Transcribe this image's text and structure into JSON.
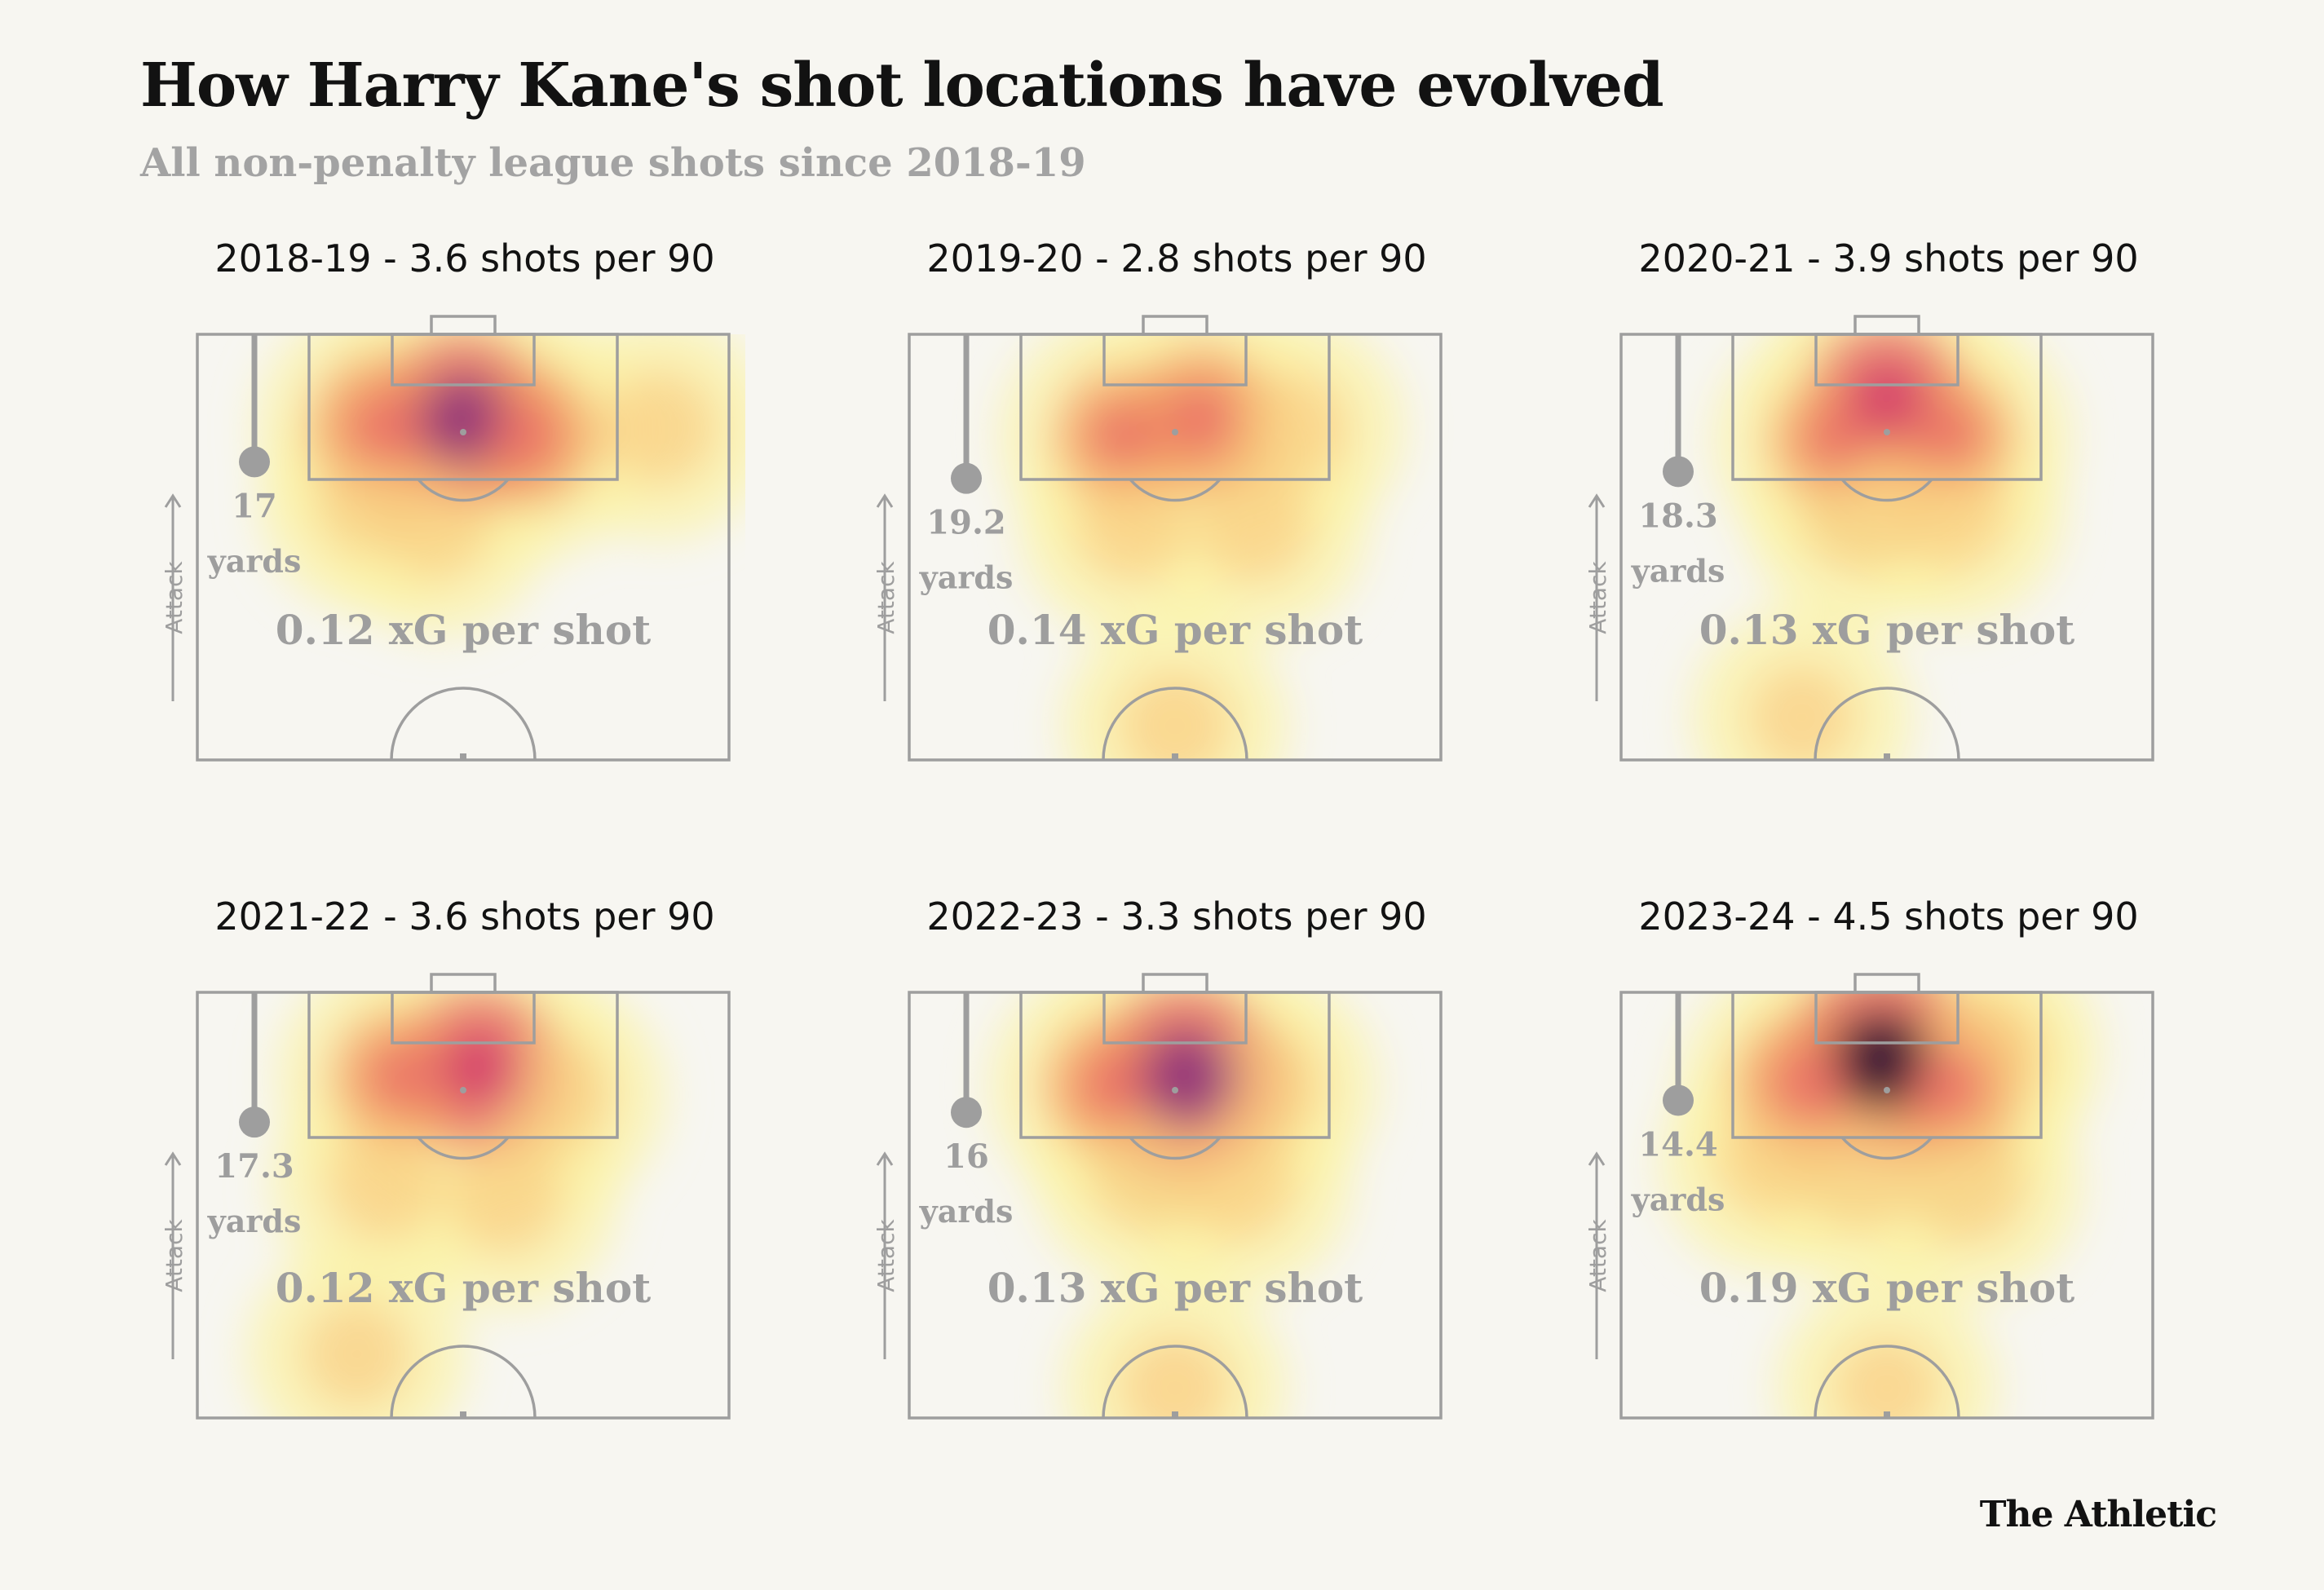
{
  "title": "How Harry Kane's shot locations have evolved",
  "subtitle": "All non-penalty league shots since 2018-19",
  "brand": "The Athletic",
  "attack_label": "Attack",
  "distance_unit": "yards",
  "xg_suffix": " xG per shot",
  "colors": {
    "background": "#f7f6f1",
    "pitch_lines": "#9e9e9e",
    "heat_low": "#fbf3a8",
    "heat_mid": "#f39a5e",
    "heat_high": "#d2386c",
    "heat_peak": "#1c0a2e"
  },
  "chart_data": [
    {
      "type": "heatmap",
      "season": "2018-19",
      "shots_per_90": 3.6,
      "title": "2018-19 - 3.6 shots per 90",
      "avg_shot_distance_yards": "17",
      "xg_per_shot": "0.12",
      "hotspots": [
        {
          "x": 0.5,
          "y": 0.2,
          "intensity": 0.85
        },
        {
          "x": 0.35,
          "y": 0.22,
          "intensity": 0.6
        },
        {
          "x": 0.62,
          "y": 0.24,
          "intensity": 0.55
        },
        {
          "x": 0.87,
          "y": 0.22,
          "intensity": 0.3
        },
        {
          "x": 0.45,
          "y": 0.45,
          "intensity": 0.25
        },
        {
          "x": 0.32,
          "y": 0.4,
          "intensity": 0.2
        }
      ]
    },
    {
      "type": "heatmap",
      "season": "2019-20",
      "shots_per_90": 2.8,
      "title": "2019-20 - 2.8 shots per 90",
      "avg_shot_distance_yards": "19.2",
      "xg_per_shot": "0.14",
      "hotspots": [
        {
          "x": 0.4,
          "y": 0.24,
          "intensity": 0.5
        },
        {
          "x": 0.55,
          "y": 0.2,
          "intensity": 0.6
        },
        {
          "x": 0.72,
          "y": 0.22,
          "intensity": 0.3
        },
        {
          "x": 0.42,
          "y": 0.45,
          "intensity": 0.3
        },
        {
          "x": 0.65,
          "y": 0.45,
          "intensity": 0.3
        },
        {
          "x": 0.5,
          "y": 0.92,
          "intensity": 0.3
        }
      ]
    },
    {
      "type": "heatmap",
      "season": "2020-21",
      "shots_per_90": 3.9,
      "title": "2020-21 - 3.9 shots per 90",
      "avg_shot_distance_yards": "18.3",
      "xg_per_shot": "0.13",
      "hotspots": [
        {
          "x": 0.5,
          "y": 0.15,
          "intensity": 0.7
        },
        {
          "x": 0.4,
          "y": 0.25,
          "intensity": 0.45
        },
        {
          "x": 0.62,
          "y": 0.24,
          "intensity": 0.45
        },
        {
          "x": 0.45,
          "y": 0.42,
          "intensity": 0.35
        },
        {
          "x": 0.62,
          "y": 0.42,
          "intensity": 0.3
        },
        {
          "x": 0.34,
          "y": 0.9,
          "intensity": 0.25
        }
      ]
    },
    {
      "type": "heatmap",
      "season": "2021-22",
      "shots_per_90": 3.6,
      "title": "2021-22 - 3.6 shots per 90",
      "avg_shot_distance_yards": "17.3",
      "xg_per_shot": "0.12",
      "hotspots": [
        {
          "x": 0.53,
          "y": 0.18,
          "intensity": 0.75
        },
        {
          "x": 0.38,
          "y": 0.2,
          "intensity": 0.5
        },
        {
          "x": 0.66,
          "y": 0.24,
          "intensity": 0.4
        },
        {
          "x": 0.35,
          "y": 0.45,
          "intensity": 0.3
        },
        {
          "x": 0.58,
          "y": 0.48,
          "intensity": 0.3
        },
        {
          "x": 0.3,
          "y": 0.85,
          "intensity": 0.25
        }
      ]
    },
    {
      "type": "heatmap",
      "season": "2022-23",
      "shots_per_90": 3.3,
      "title": "2022-23 - 3.3 shots per 90",
      "avg_shot_distance_yards": "16",
      "xg_per_shot": "0.13",
      "hotspots": [
        {
          "x": 0.52,
          "y": 0.2,
          "intensity": 0.95
        },
        {
          "x": 0.38,
          "y": 0.22,
          "intensity": 0.5
        },
        {
          "x": 0.66,
          "y": 0.22,
          "intensity": 0.4
        },
        {
          "x": 0.45,
          "y": 0.42,
          "intensity": 0.35
        },
        {
          "x": 0.62,
          "y": 0.45,
          "intensity": 0.3
        },
        {
          "x": 0.5,
          "y": 0.93,
          "intensity": 0.28
        }
      ]
    },
    {
      "type": "heatmap",
      "season": "2023-24",
      "shots_per_90": 4.5,
      "title": "2023-24 - 4.5 shots per 90",
      "avg_shot_distance_yards": "14.4",
      "xg_per_shot": "0.19",
      "hotspots": [
        {
          "x": 0.49,
          "y": 0.16,
          "intensity": 1.0
        },
        {
          "x": 0.35,
          "y": 0.22,
          "intensity": 0.6
        },
        {
          "x": 0.62,
          "y": 0.22,
          "intensity": 0.6
        },
        {
          "x": 0.68,
          "y": 0.14,
          "intensity": 0.4
        },
        {
          "x": 0.45,
          "y": 0.42,
          "intensity": 0.35
        },
        {
          "x": 0.65,
          "y": 0.45,
          "intensity": 0.35
        },
        {
          "x": 0.28,
          "y": 0.4,
          "intensity": 0.25
        },
        {
          "x": 0.5,
          "y": 0.93,
          "intensity": 0.25
        }
      ]
    }
  ]
}
